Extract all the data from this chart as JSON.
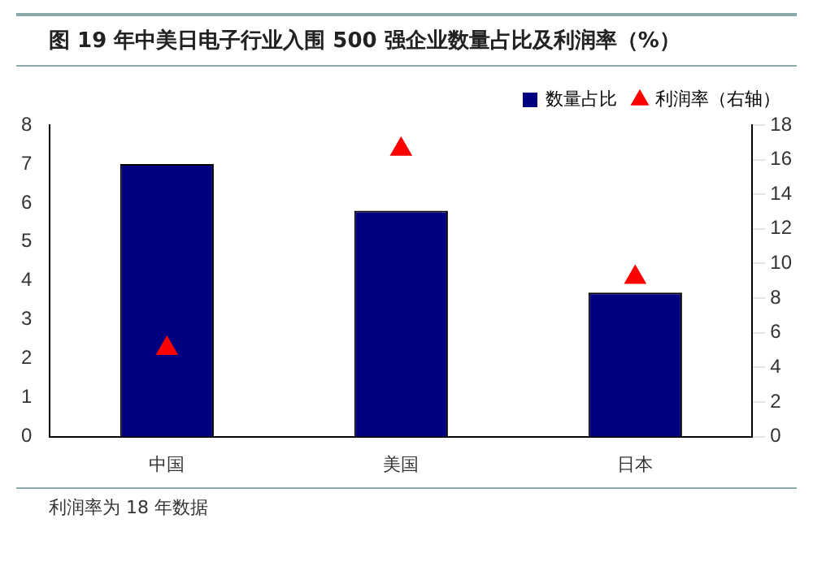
{
  "chart_data": {
    "type": "bar",
    "title": "图    19 年中美日电子行业入围 500 强企业数量占比及利润率（%）",
    "categories": [
      "中国",
      "美国",
      "日本"
    ],
    "series": [
      {
        "name": "数量占比",
        "color": "#000080",
        "values": [
          7.0,
          5.8,
          3.7
        ]
      },
      {
        "name": "利润率（右轴）",
        "type": "scatter",
        "axis": "y2",
        "color": "#ff0000",
        "marker": "triangle",
        "values": [
          5.1,
          16.6,
          9.2
        ]
      }
    ],
    "ylim": [
      0,
      8
    ],
    "yticks": [
      0,
      1,
      2,
      3,
      4,
      5,
      6,
      7,
      8
    ],
    "y2lim": [
      0,
      18
    ],
    "y2ticks": [
      0,
      2,
      4,
      6,
      8,
      10,
      12,
      14,
      16,
      18
    ],
    "grid": false,
    "legend": "top right",
    "annotations": [
      "利润率为 18 年数据"
    ]
  }
}
